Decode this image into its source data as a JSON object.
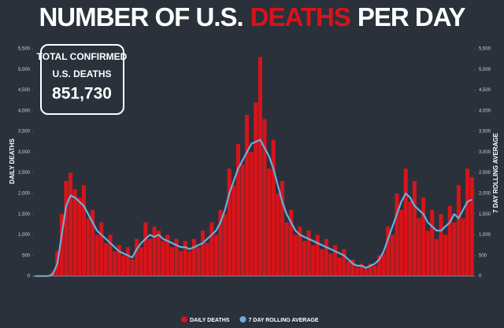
{
  "chart_data": {
    "type": "bar",
    "title_parts": [
      "NUMBER OF U.S.",
      "DEATHS",
      "PER DAY"
    ],
    "callout": {
      "lines": [
        "TOTAL CONFIRMED",
        "U.S. DEATHS"
      ],
      "total": "851,730"
    },
    "y_label": "DAILY DEATHS",
    "y2_label": "7 DAY ROLLING AVERAGE",
    "categories": [
      null,
      null,
      null,
      null,
      null,
      null,
      null,
      null,
      null,
      null,
      null,
      null,
      null,
      null,
      null,
      null,
      null,
      null,
      null,
      null,
      null,
      null,
      null,
      null,
      null,
      null,
      null,
      null,
      null,
      null,
      null,
      null,
      null,
      null,
      null,
      null,
      null,
      null,
      null,
      null,
      null,
      null,
      null,
      null,
      null,
      null,
      null,
      null,
      null,
      null,
      null,
      null,
      null,
      null,
      null,
      null,
      null,
      null,
      null,
      null,
      null,
      null,
      null,
      null,
      null,
      null,
      null,
      null,
      null,
      null,
      null,
      null,
      null,
      null,
      null,
      null,
      null,
      null,
      null,
      null,
      null,
      null,
      null,
      null,
      null,
      null,
      null,
      null,
      null,
      null,
      null,
      null,
      null,
      null,
      null,
      null,
      null,
      null,
      null,
      null
    ],
    "series": [
      {
        "name": "DAILY DEATHS",
        "color": "#d7141a",
        "type": "bar",
        "values": [
          0,
          0,
          0,
          10,
          120,
          600,
          1500,
          2300,
          2500,
          2100,
          1900,
          2200,
          1400,
          1600,
          1000,
          1300,
          800,
          1000,
          600,
          750,
          500,
          700,
          400,
          900,
          700,
          1300,
          900,
          1200,
          1100,
          850,
          1000,
          700,
          900,
          600,
          850,
          600,
          900,
          700,
          1100,
          800,
          1300,
          1000,
          1600,
          1500,
          2600,
          2200,
          3200,
          2700,
          3900,
          3000,
          4200,
          5300,
          3800,
          2600,
          3300,
          2000,
          2300,
          1300,
          1600,
          1000,
          1200,
          850,
          1100,
          750,
          1000,
          650,
          900,
          550,
          750,
          450,
          650,
          350,
          400,
          200,
          300,
          180,
          300,
          250,
          500,
          550,
          1200,
          1000,
          2000,
          1600,
          2600,
          1800,
          2300,
          1400,
          1900,
          1100,
          1600,
          900,
          1500,
          1000,
          1700,
          1300,
          2200,
          1400,
          2600,
          2400
        ]
      },
      {
        "name": "7 DAY ROLLING AVERAGE",
        "color": "#6aaee0",
        "type": "line",
        "axis": "y2",
        "values": [
          0,
          0,
          0,
          0,
          50,
          300,
          1000,
          1700,
          1950,
          1900,
          1800,
          1700,
          1500,
          1300,
          1100,
          1000,
          900,
          800,
          700,
          600,
          550,
          500,
          450,
          650,
          800,
          900,
          1000,
          950,
          1000,
          900,
          850,
          800,
          750,
          700,
          700,
          650,
          700,
          750,
          800,
          900,
          1000,
          1100,
          1300,
          1600,
          2000,
          2300,
          2600,
          2800,
          3000,
          3200,
          3250,
          3300,
          3100,
          2900,
          2600,
          2200,
          1800,
          1500,
          1300,
          1100,
          1000,
          950,
          900,
          850,
          800,
          750,
          700,
          650,
          600,
          550,
          500,
          400,
          300,
          250,
          250,
          200,
          250,
          300,
          400,
          600,
          900,
          1200,
          1500,
          1800,
          2000,
          1900,
          1700,
          1600,
          1500,
          1300,
          1200,
          1100,
          1100,
          1200,
          1300,
          1500,
          1400,
          1600,
          1800,
          1850
        ]
      }
    ],
    "ylim": [
      0,
      5500
    ],
    "y2lim": [
      0,
      5500
    ],
    "yticks": [
      0,
      {
        "value": 500,
        "label": "500"
      },
      {
        "value": 1000,
        "label": "1,000"
      },
      {
        "value": 1500,
        "label": "1,500"
      },
      {
        "value": 2000,
        "label": "2,000"
      },
      {
        "value": 2500,
        "label": "2,500"
      },
      {
        "value": 3000,
        "label": "3,000"
      },
      {
        "value": 3500,
        "label": "3,500"
      },
      {
        "value": 4000,
        "label": "4,000"
      },
      {
        "value": 4500,
        "label": "4,500"
      },
      {
        "value": 5000,
        "label": "5,000"
      },
      {
        "value": 5500,
        "label": "5,500"
      }
    ],
    "y2ticks": [
      0,
      {
        "value": 500,
        "label": "500"
      },
      {
        "value": 1000,
        "label": "1,000"
      },
      {
        "value": 1500,
        "label": "1,500"
      },
      {
        "value": 2000,
        "label": "2,000"
      },
      {
        "value": 2500,
        "label": "2,500"
      },
      {
        "value": 3000,
        "label": "3,000"
      },
      {
        "value": 3500,
        "label": "3,500"
      },
      {
        "value": 4000,
        "label": "4,000"
      },
      {
        "value": 4500,
        "label": "4,500"
      },
      {
        "value": 5000,
        "label": "5,000"
      },
      {
        "value": 5500,
        "label": "5,500"
      }
    ]
  }
}
